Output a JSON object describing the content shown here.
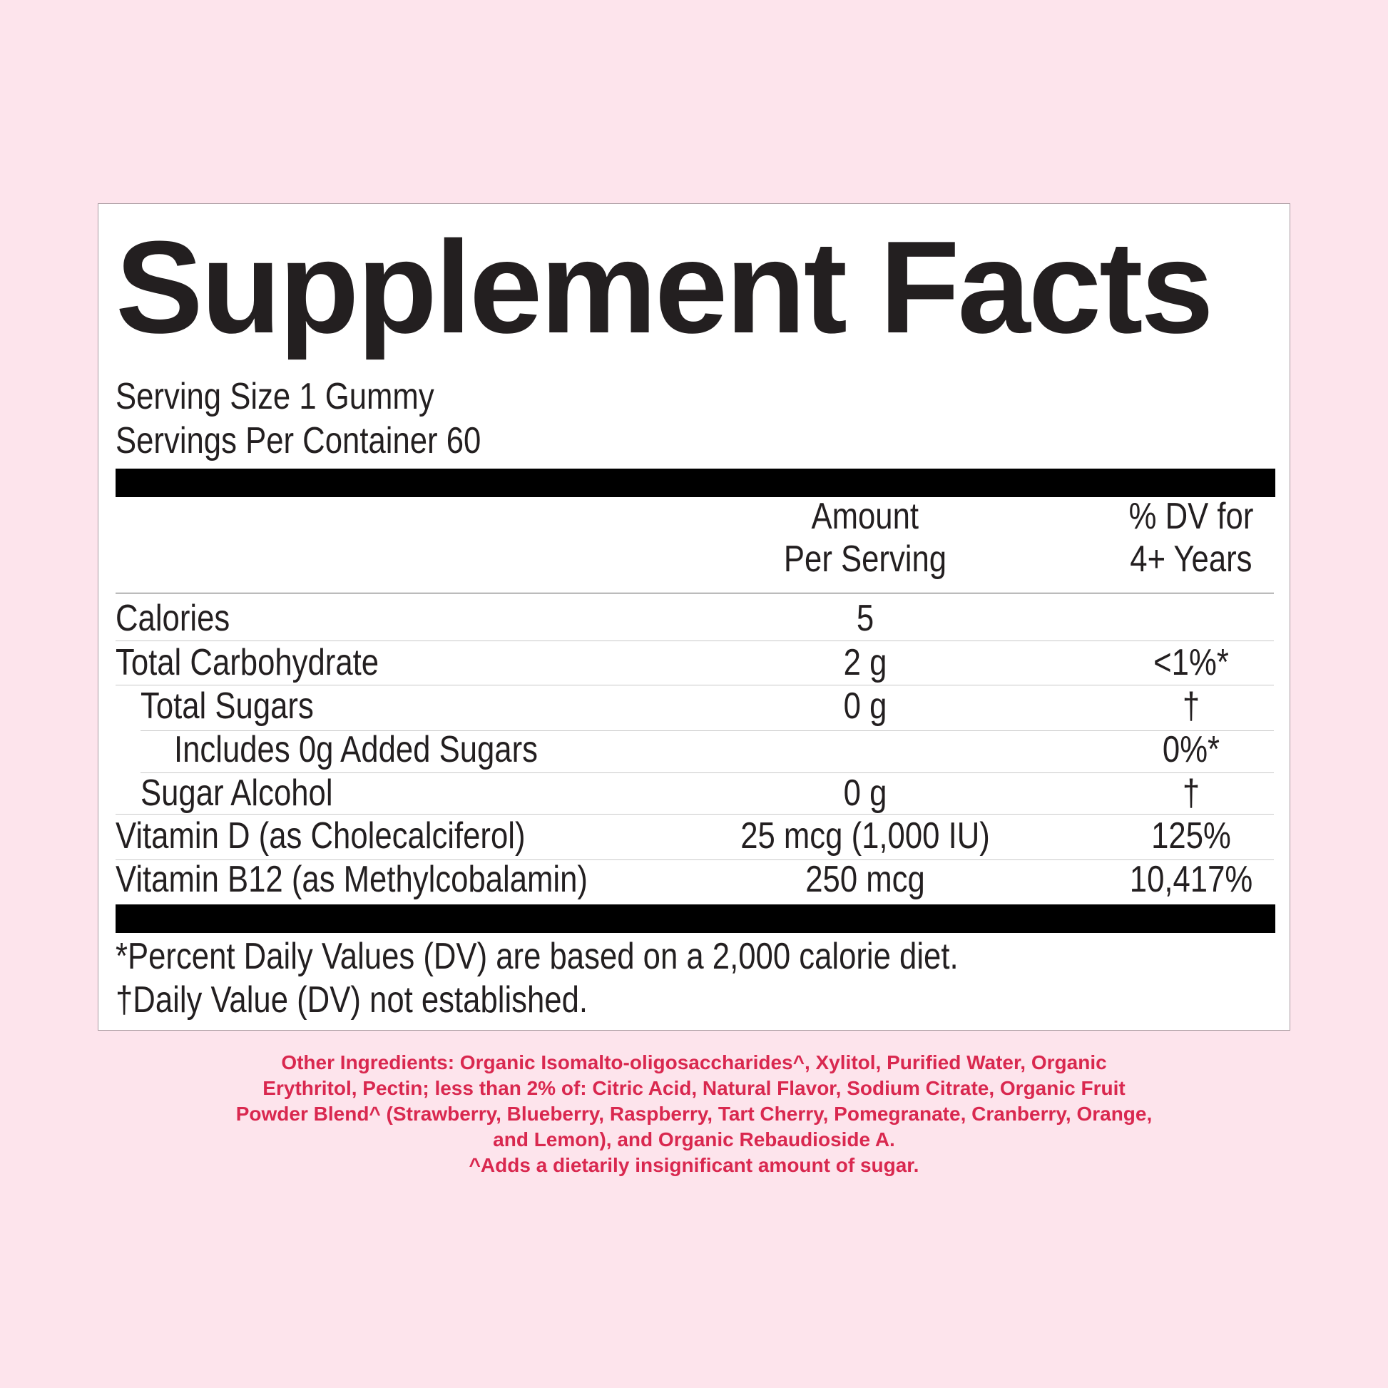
{
  "title": "Supplement Facts",
  "serving_size": "Serving Size 1 Gummy",
  "servings_per_container": "Servings Per Container 60",
  "header": {
    "amount_line1": "Amount",
    "amount_line2": "Per Serving",
    "dv_line1": "% DV for",
    "dv_line2": "4+ Years"
  },
  "rows": [
    {
      "name": "Calories",
      "amount": "5",
      "dv": ""
    },
    {
      "name": "Total Carbohydrate",
      "amount": "2 g",
      "dv": "<1%*"
    },
    {
      "name": "Total Sugars",
      "amount": "0 g",
      "dv": "†"
    },
    {
      "name": "Includes 0g Added Sugars",
      "amount": "",
      "dv": "0%*"
    },
    {
      "name": "Sugar Alcohol",
      "amount": "0 g",
      "dv": "†"
    },
    {
      "name": "Vitamin D (as Cholecalciferol)",
      "amount": "25 mcg (1,000 IU)",
      "dv": "125%"
    },
    {
      "name": "Vitamin B12 (as Methylcobalamin)",
      "amount": "250 mcg",
      "dv": "10,417%"
    }
  ],
  "footnotes": [
    "*Percent Daily Values (DV) are based on a 2,000 calorie diet.",
    "†Daily Value (DV) not established."
  ],
  "ingredients": [
    "Other Ingredients: Organic Isomalto-oligosaccharides^, Xylitol, Purified Water, Organic",
    "Erythritol, Pectin; less than 2% of: Citric Acid, Natural Flavor, Sodium Citrate, Organic Fruit",
    "Powder Blend^ (Strawberry, Blueberry, Raspberry, Tart Cherry, Pomegranate, Cranberry, Orange,",
    "and Lemon), and Organic Rebaudioside A.",
    "^Adds a dietarily insignificant amount of sugar."
  ],
  "colors": {
    "background": "#fde4ec",
    "ingredients_text": "#d9284f",
    "label_text": "#231f20"
  }
}
